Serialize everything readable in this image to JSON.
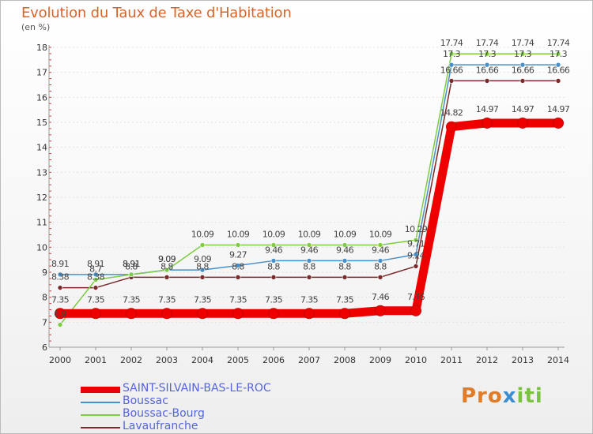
{
  "chart_data": {
    "type": "line",
    "title": "Evolution du Taux de Taxe d'Habitation",
    "ylabel": "(en %)",
    "xlabel": "",
    "ylim": [
      6,
      18
    ],
    "yticks": [
      6,
      7,
      8,
      9,
      10,
      11,
      12,
      13,
      14,
      15,
      16,
      17,
      18
    ],
    "categories": [
      "2000",
      "2001",
      "2002",
      "2003",
      "2004",
      "2005",
      "2006",
      "2007",
      "2008",
      "2009",
      "2010",
      "2011",
      "2012",
      "2013",
      "2014"
    ],
    "series": [
      {
        "name": "SAINT-SILVAIN-BAS-LE-ROC",
        "color": "#ee0000",
        "values": [
          7.35,
          7.35,
          7.35,
          7.35,
          7.35,
          7.35,
          7.35,
          7.35,
          7.35,
          7.46,
          7.46,
          14.82,
          14.97,
          14.97,
          14.97
        ]
      },
      {
        "name": "Boussac",
        "color": "#4a90c8",
        "values": [
          8.91,
          8.91,
          8.91,
          9.09,
          9.09,
          9.27,
          9.46,
          9.46,
          9.46,
          9.46,
          9.71,
          17.3,
          17.3,
          17.3,
          17.3
        ]
      },
      {
        "name": "Boussac-Bourg",
        "color": "#7dcc42",
        "values": [
          6.9,
          8.7,
          8.91,
          9.09,
          10.09,
          10.09,
          10.09,
          10.09,
          10.09,
          10.09,
          10.29,
          17.74,
          17.74,
          17.74,
          17.74
        ]
      },
      {
        "name": "Lavaufranche",
        "color": "#7a2a2a",
        "values": [
          8.38,
          8.38,
          8.8,
          8.8,
          8.8,
          8.8,
          8.8,
          8.8,
          8.8,
          8.8,
          9.24,
          16.66,
          16.66,
          16.66,
          16.66
        ]
      }
    ],
    "data_labels": [
      {
        "series": 0,
        "labels": [
          "7.35",
          "7.35",
          "7.35",
          "7.35",
          "7.35",
          "7.35",
          "7.35",
          "7.35",
          "7.35",
          "7.46",
          "7.46",
          "14.82",
          "14.97",
          "14.97",
          "14.97"
        ]
      },
      {
        "series": 1,
        "labels": [
          "8.91",
          "8.91",
          "8.91",
          "9.09",
          "9.09",
          "9.27",
          "9.46",
          "9.46",
          "9.46",
          "9.46",
          "9.71",
          "17.3",
          "17.3",
          "17.3",
          "17.3"
        ]
      },
      {
        "series": 2,
        "labels": [
          "6.9",
          "8.7",
          "8.91",
          "9.09",
          "10.09",
          "10.09",
          "10.09",
          "10.09",
          "10.09",
          "10.09",
          "10.29",
          "17.74",
          "17.74",
          "17.74",
          "17.74"
        ]
      },
      {
        "series": 3,
        "labels": [
          "8.38",
          "8.38",
          "8.8",
          "8.8",
          "8.8",
          "8.8",
          "8.8",
          "8.8",
          "8.8",
          "8.8",
          "9.24",
          "16.66",
          "16.66",
          "16.66",
          "16.66"
        ]
      }
    ],
    "legend_position": "bottom-left"
  },
  "header": {
    "title": "Evolution du Taux de Taxe d'Habitation",
    "unit": "(en %)"
  },
  "logo": {
    "part1": "Pro",
    "part2": "x",
    "part3": "iti"
  }
}
